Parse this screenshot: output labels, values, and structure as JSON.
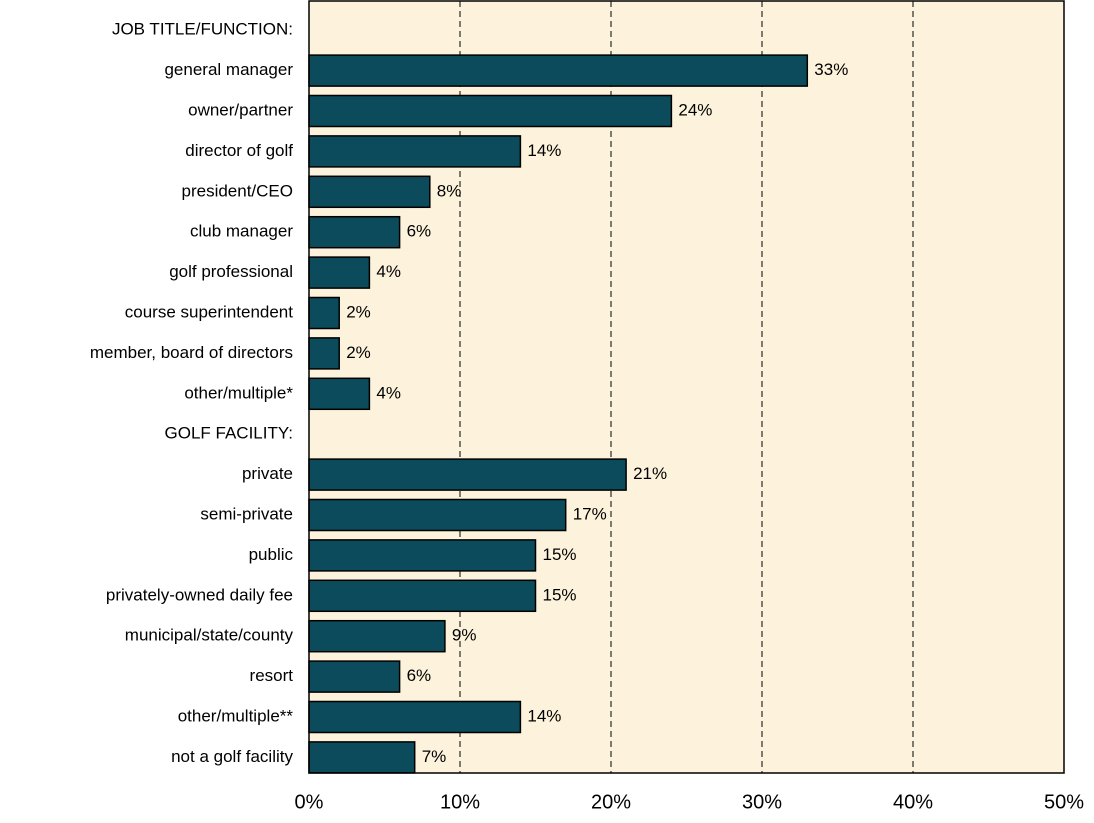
{
  "chart_data": {
    "type": "bar",
    "orientation": "horizontal",
    "categories": [
      "JOB TITLE/FUNCTION:",
      "general manager",
      "owner/partner",
      "director of golf",
      "president/CEO",
      "club manager",
      "golf professional",
      "course superintendent",
      "member, board of directors",
      "other/multiple*",
      "GOLF FACILITY:",
      "private",
      "semi-private",
      "public",
      "privately-owned daily fee",
      "municipal/state/county",
      "resort",
      "other/multiple**",
      "not a golf facility"
    ],
    "values": [
      null,
      33,
      24,
      14,
      8,
      6,
      4,
      2,
      2,
      4,
      null,
      21,
      17,
      15,
      15,
      9,
      6,
      14,
      7
    ],
    "value_labels": [
      null,
      "33%",
      "24%",
      "14%",
      "8%",
      "6%",
      "4%",
      "2%",
      "2%",
      "4%",
      null,
      "21%",
      "17%",
      "15%",
      "15%",
      "9%",
      "6%",
      "14%",
      "7%"
    ],
    "color": "#0b4b5b",
    "xlim": [
      0,
      50
    ],
    "xticks": [
      {
        "value": 0,
        "label": "0%"
      },
      {
        "value": 10,
        "label": "10%"
      },
      {
        "value": 20,
        "label": "20%"
      },
      {
        "value": 30,
        "label": "30%"
      },
      {
        "value": 40,
        "label": "40%"
      },
      {
        "value": 50,
        "label": "50%"
      }
    ],
    "grid": true
  }
}
